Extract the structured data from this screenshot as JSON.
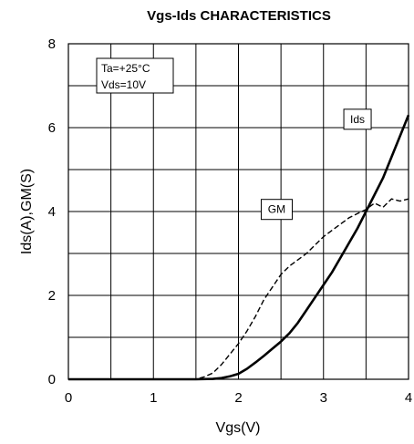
{
  "chart_data": {
    "type": "line",
    "title": "Vgs-Ids CHARACTERISTICS",
    "xlabel": "Vgs(V)",
    "ylabel": "Ids(A),GM(S)",
    "xlim": [
      0,
      4
    ],
    "ylim": [
      0,
      8
    ],
    "x_ticks": [
      "0",
      "1",
      "2",
      "3",
      "4"
    ],
    "y_ticks": [
      "0",
      "2",
      "4",
      "6",
      "8"
    ],
    "grid": true,
    "conditions": [
      "Ta=+25°C",
      "Vds=10V"
    ],
    "series": [
      {
        "name": "Ids",
        "style": "solid",
        "x": [
          0,
          1.5,
          1.7,
          1.8,
          1.9,
          2.0,
          2.1,
          2.2,
          2.3,
          2.4,
          2.5,
          2.6,
          2.7,
          2.8,
          2.9,
          3.0,
          3.1,
          3.2,
          3.3,
          3.4,
          3.5,
          3.6,
          3.7,
          3.8,
          3.9,
          4.0
        ],
        "y": [
          0,
          0,
          0.01,
          0.03,
          0.07,
          0.13,
          0.25,
          0.4,
          0.56,
          0.73,
          0.9,
          1.1,
          1.35,
          1.65,
          1.95,
          2.25,
          2.55,
          2.9,
          3.25,
          3.6,
          4.0,
          4.4,
          4.8,
          5.3,
          5.8,
          6.3
        ]
      },
      {
        "name": "GM",
        "style": "dashed",
        "x": [
          0,
          1.5,
          1.6,
          1.7,
          1.8,
          1.9,
          2.0,
          2.1,
          2.2,
          2.3,
          2.4,
          2.5,
          2.6,
          2.7,
          2.8,
          2.9,
          3.0,
          3.1,
          3.2,
          3.3,
          3.4,
          3.5,
          3.6,
          3.7,
          3.8,
          3.9,
          4.0
        ],
        "y": [
          0,
          0,
          0.06,
          0.15,
          0.35,
          0.6,
          0.85,
          1.15,
          1.5,
          1.9,
          2.2,
          2.5,
          2.7,
          2.85,
          3.0,
          3.2,
          3.4,
          3.55,
          3.7,
          3.85,
          3.95,
          4.05,
          4.2,
          4.1,
          4.3,
          4.25,
          4.3
        ]
      }
    ],
    "series_labels": {
      "Ids": {
        "x": 3.4,
        "y": 6.2
      },
      "GM": {
        "x": 2.45,
        "y": 4.05
      }
    }
  },
  "colors": {
    "line": "#000000",
    "background": "#ffffff"
  }
}
